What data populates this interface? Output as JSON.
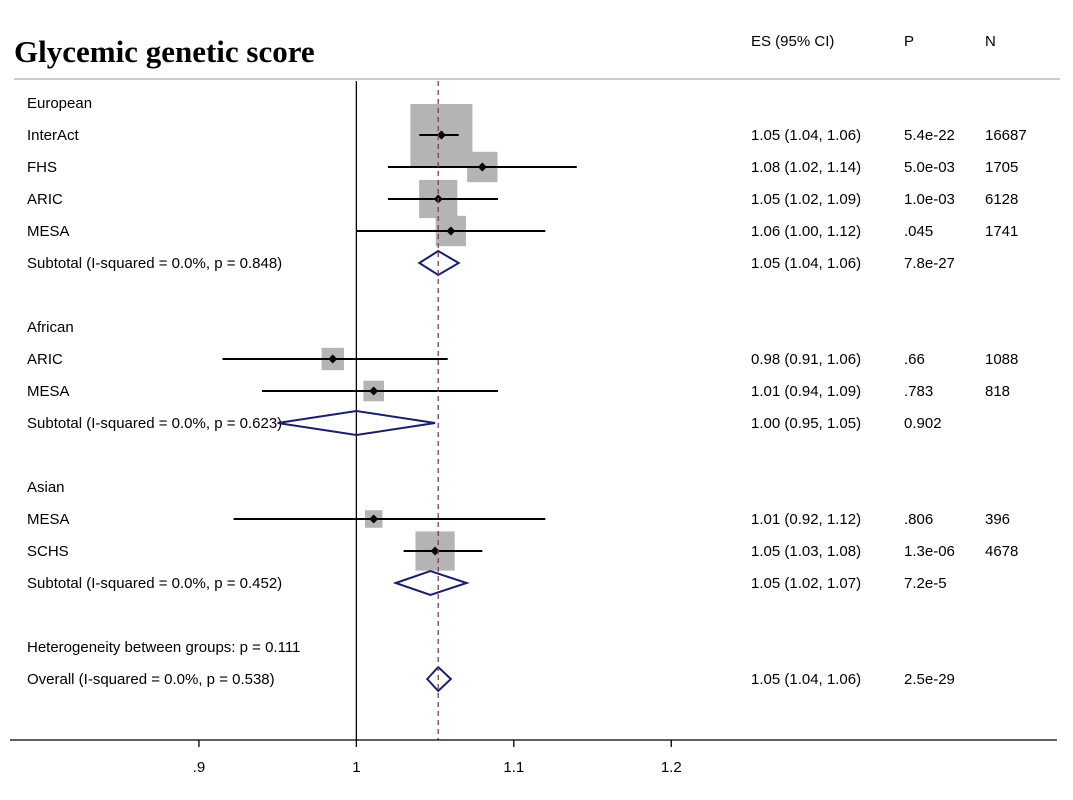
{
  "chart_data": {
    "type": "forest",
    "title": "Glycemic genetic score",
    "columns": {
      "es": "ES (95% CI)",
      "p": "P",
      "n": "N"
    },
    "xlim": [
      0.78,
      1.445
    ],
    "xticks": [
      {
        "value": 0.9,
        "label": ".9"
      },
      {
        "value": 1.0,
        "label": "1"
      },
      {
        "value": 1.1,
        "label": "1.1"
      },
      {
        "value": 1.2,
        "label": "1.2"
      }
    ],
    "null_line": 1.0,
    "overall_line": 1.052,
    "rows": [
      {
        "kind": "group",
        "label": "European"
      },
      {
        "kind": "study",
        "label": "InterAct",
        "es": 1.054,
        "lo": 1.04,
        "hi": 1.065,
        "weight": 1.0,
        "es_text": "1.05 (1.04, 1.06)",
        "p": "5.4e-22",
        "n": "16687"
      },
      {
        "kind": "study",
        "label": "FHS",
        "es": 1.08,
        "lo": 1.02,
        "hi": 1.14,
        "weight": 0.24,
        "es_text": "1.08 (1.02, 1.14)",
        "p": "5.0e-03",
        "n": "1705"
      },
      {
        "kind": "study",
        "label": "ARIC",
        "es": 1.052,
        "lo": 1.02,
        "hi": 1.09,
        "weight": 0.38,
        "es_text": "1.05 (1.02, 1.09)",
        "p": "1.0e-03",
        "n": "6128"
      },
      {
        "kind": "study",
        "label": "MESA",
        "es": 1.06,
        "lo": 1.0,
        "hi": 1.12,
        "weight": 0.24,
        "es_text": "1.06 (1.00, 1.12)",
        "p": ".045",
        "n": "1741"
      },
      {
        "kind": "subtotal",
        "label": "Subtotal  (I-squared = 0.0%, p = 0.848)",
        "es": 1.052,
        "lo": 1.04,
        "hi": 1.065,
        "es_text": "1.05 (1.04, 1.06)",
        "p": "7.8e-27",
        "n": ""
      },
      {
        "kind": "blank"
      },
      {
        "kind": "group",
        "label": "African"
      },
      {
        "kind": "study",
        "label": "ARIC",
        "es": 0.985,
        "lo": 0.915,
        "hi": 1.058,
        "weight": 0.13,
        "es_text": "0.98 (0.91, 1.06)",
        "p": ".66",
        "n": "1088"
      },
      {
        "kind": "study",
        "label": "MESA",
        "es": 1.011,
        "lo": 0.94,
        "hi": 1.09,
        "weight": 0.11,
        "es_text": "1.01 (0.94, 1.09)",
        "p": ".783",
        "n": "818"
      },
      {
        "kind": "subtotal",
        "label": "Subtotal  (I-squared = 0.0%, p = 0.623)",
        "es": 1.0,
        "lo": 0.95,
        "hi": 1.05,
        "es_text": "1.00 (0.95, 1.05)",
        "p": "0.902",
        "n": ""
      },
      {
        "kind": "blank"
      },
      {
        "kind": "group",
        "label": "Asian"
      },
      {
        "kind": "study",
        "label": "MESA",
        "es": 1.011,
        "lo": 0.922,
        "hi": 1.12,
        "weight": 0.08,
        "es_text": "1.01 (0.92, 1.12)",
        "p": ".806",
        "n": "396"
      },
      {
        "kind": "study",
        "label": "SCHS",
        "es": 1.05,
        "lo": 1.03,
        "hi": 1.08,
        "weight": 0.4,
        "es_text": "1.05 (1.03, 1.08)",
        "p": "1.3e-06",
        "n": "4678"
      },
      {
        "kind": "subtotal",
        "label": "Subtotal  (I-squared = 0.0%, p = 0.452)",
        "es": 1.047,
        "lo": 1.025,
        "hi": 1.07,
        "es_text": "1.05 (1.02, 1.07)",
        "p": "7.2e-5",
        "n": ""
      },
      {
        "kind": "blank"
      },
      {
        "kind": "note",
        "label": "Heterogeneity between groups: p = 0.111"
      },
      {
        "kind": "overall",
        "label": "Overall  (I-squared = 0.0%, p = 0.538)",
        "es": 1.052,
        "lo": 1.045,
        "hi": 1.06,
        "es_text": "1.05 (1.04, 1.06)",
        "p": "2.5e-29",
        "n": ""
      }
    ],
    "colors": {
      "box": "#b4b4b4",
      "diamond": "#1a1f6b",
      "overall_line": "#8b3a4a",
      "text": "#000000"
    }
  }
}
